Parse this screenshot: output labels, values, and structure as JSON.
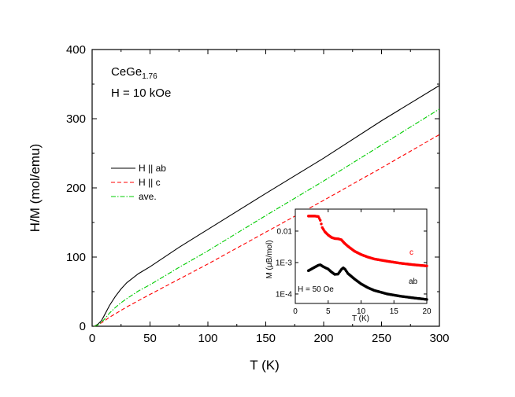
{
  "chart_data": [
    {
      "type": "line",
      "xlabel": "T (K)",
      "ylabel": "H/M (mol/emu)",
      "xlim": [
        0,
        300
      ],
      "ylim": [
        0,
        400
      ],
      "xticks": [
        0,
        50,
        100,
        150,
        200,
        250,
        300
      ],
      "yticks": [
        0,
        100,
        200,
        300,
        400
      ],
      "annotations": {
        "compound_base": "CeGe",
        "compound_sub": "1.76",
        "field": "H = 10 kOe"
      },
      "series": [
        {
          "name": "H || ab",
          "color": "#000000",
          "style": "solid",
          "x": [
            2,
            5,
            8,
            10,
            15,
            20,
            25,
            30,
            40,
            50,
            75,
            100,
            150,
            200,
            250,
            300
          ],
          "y": [
            0,
            3,
            8,
            14,
            30,
            43,
            54,
            63,
            76,
            86,
            114,
            140,
            192,
            243,
            297,
            348
          ]
        },
        {
          "name": "H || c",
          "color": "#ff0000",
          "style": "dashed",
          "x": [
            2,
            5,
            8,
            10,
            15,
            20,
            25,
            30,
            40,
            50,
            75,
            100,
            150,
            200,
            250,
            300
          ],
          "y": [
            0,
            2,
            5,
            7,
            13,
            18,
            23,
            28,
            37,
            46,
            68,
            90,
            136,
            182,
            229,
            277
          ]
        },
        {
          "name": "ave.",
          "color": "#00cc00",
          "style": "dashdot",
          "x": [
            2,
            5,
            8,
            10,
            15,
            20,
            25,
            30,
            40,
            50,
            75,
            100,
            150,
            200,
            250,
            300
          ],
          "y": [
            0,
            2,
            6,
            9,
            19,
            27,
            34,
            40,
            51,
            60,
            85,
            109,
            160,
            210,
            262,
            314
          ]
        }
      ]
    },
    {
      "type": "scatter",
      "yscale": "log",
      "xlabel": "T (K)",
      "ylabel": "M (μB/mol)",
      "xlim": [
        0,
        20
      ],
      "ylim": [
        5e-05,
        0.05
      ],
      "xticks": [
        0,
        5,
        10,
        15,
        20
      ],
      "yticks": [
        {
          "value": 0.0001,
          "label": "1E-4"
        },
        {
          "value": 0.001,
          "label": "1E-3"
        },
        {
          "value": 0.01,
          "label": "0.01"
        }
      ],
      "annotation": "H = 50 Oe",
      "series": [
        {
          "name": "c",
          "color": "#ff0000",
          "x": [
            2,
            2.5,
            3,
            3.5,
            3.8,
            4.1,
            4.5,
            5,
            5.5,
            6,
            6.5,
            7,
            7.5,
            8,
            9,
            10,
            11,
            12,
            14,
            16,
            18,
            20
          ],
          "y": [
            0.03,
            0.03,
            0.03,
            0.029,
            0.022,
            0.013,
            0.0095,
            0.0075,
            0.0063,
            0.0058,
            0.0057,
            0.0053,
            0.0041,
            0.0033,
            0.0023,
            0.0018,
            0.0015,
            0.0013,
            0.0011,
            0.00095,
            0.00085,
            0.00078
          ]
        },
        {
          "name": "ab",
          "color": "#000000",
          "x": [
            2,
            2.5,
            3,
            3.5,
            3.8,
            4.2,
            4.6,
            5,
            5.5,
            6,
            6.5,
            7,
            7.3,
            7.6,
            8,
            9,
            10,
            11,
            12,
            14,
            16,
            18,
            20
          ],
          "y": [
            0.00055,
            0.00063,
            0.00072,
            0.00082,
            0.00085,
            0.00075,
            0.00068,
            0.00062,
            0.0005,
            0.00042,
            0.00043,
            0.0006,
            0.00068,
            0.0006,
            0.00045,
            0.0003,
            0.00021,
            0.00016,
            0.00013,
            0.0001,
            8.5e-05,
            7.5e-05,
            6.7e-05
          ]
        }
      ]
    }
  ]
}
